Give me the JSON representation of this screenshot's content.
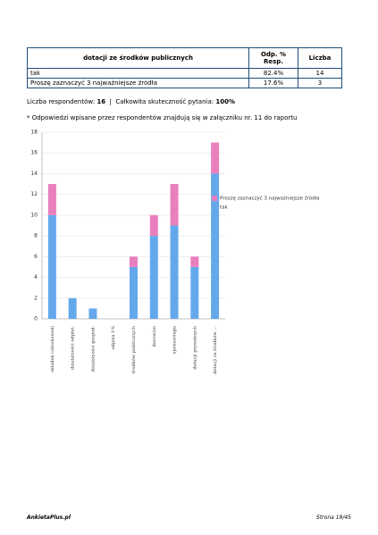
{
  "table": {
    "header": [
      "dotacji ze środków publicznych",
      "Odp. % Resp.",
      "Liczba"
    ],
    "rows": [
      [
        "tak",
        "82.4%",
        "14"
      ],
      [
        "Proszę zaznaczyć 3 najważniejsze źródła",
        "17.6%",
        "3"
      ]
    ]
  },
  "summary": {
    "respondents_label": "Liczba respondentów:",
    "respondents": "16",
    "separator": "|",
    "effectiveness_label": "Całkowita skuteczność pytania:",
    "effectiveness": "100%"
  },
  "footnote": "* Odpowiedzi wpisane przez respondentów znajdują się w załączniku nr. 11 do raportu",
  "chart_data": {
    "type": "bar",
    "stacked": true,
    "categories": [
      "składek członkowski",
      "działalności odpłat.",
      "działalności gospod.",
      "odpisu 1%",
      "środków publicznych",
      "darowizn",
      "sponsoringu",
      "dotacji prywatnych",
      "dotacji ze środków ..."
    ],
    "series": [
      {
        "name": "tak",
        "color": "#64a8ec",
        "values": [
          10,
          2,
          1,
          0,
          5,
          8,
          9,
          5,
          14
        ]
      },
      {
        "name": "Proszę zaznaczyć 3 najważniejsze źródła",
        "color": "#e97fbd",
        "values": [
          3,
          0,
          0,
          0,
          1,
          2,
          4,
          1,
          3
        ]
      }
    ],
    "ylim": [
      0,
      18
    ],
    "yticks": [
      0,
      2,
      4,
      6,
      8,
      10,
      12,
      14,
      16,
      18
    ],
    "grid": true,
    "legend": "right"
  },
  "footer": {
    "left": "AnkietaPlus.pl",
    "right": "Strona 19/45"
  }
}
